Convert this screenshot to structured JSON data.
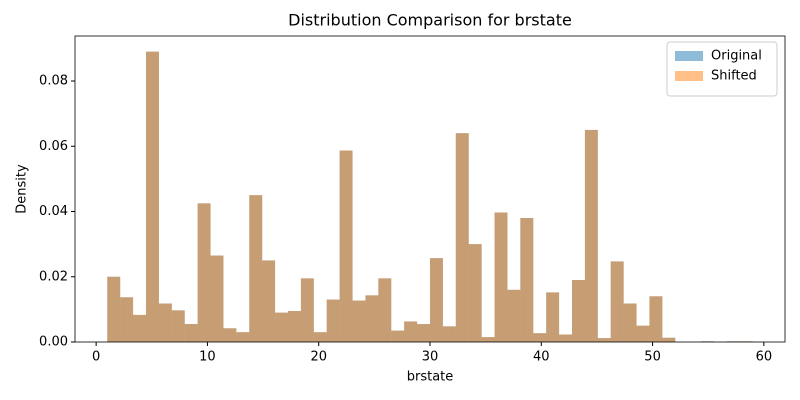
{
  "chart_data": {
    "type": "histogram",
    "title": "Distribution Comparison for brstate",
    "xlabel": "brstate",
    "ylabel": "Density",
    "bins": [
      1,
      2.16,
      3.32,
      4.48,
      5.64,
      6.8,
      7.96,
      9.12,
      10.28,
      11.44,
      12.6,
      13.76,
      14.92,
      16.08,
      17.24,
      18.4,
      19.56,
      20.72,
      21.88,
      23.04,
      24.2,
      25.36,
      26.52,
      27.68,
      28.84,
      30,
      31.16,
      32.32,
      33.48,
      34.64,
      35.8,
      36.96,
      38.12,
      39.28,
      40.44,
      41.6,
      42.76,
      43.92,
      45.08,
      46.24,
      47.4,
      48.56,
      49.72,
      50.88,
      52.04,
      53.2,
      54.36,
      55.52,
      56.68,
      57.84,
      59
    ],
    "series": [
      {
        "name": "Original",
        "color": "#1f77b4",
        "values": [
          0.02,
          0.0137,
          0.0083,
          0.089,
          0.0118,
          0.0097,
          0.0055,
          0.0425,
          0.0265,
          0.0042,
          0.003,
          0.045,
          0.025,
          0.009,
          0.0095,
          0.0195,
          0.003,
          0.013,
          0.0587,
          0.0127,
          0.0143,
          0.0195,
          0.0035,
          0.0063,
          0.0055,
          0.0257,
          0.0048,
          0.064,
          0.03,
          0.0015,
          0.0397,
          0.016,
          0.038,
          0.0027,
          0.0152,
          0.0023,
          0.019,
          0.065,
          0.0012,
          0.0247,
          0.0118,
          0.005,
          0.014,
          0.0013,
          0,
          0,
          0.0002,
          0,
          0.0002,
          0.0002
        ]
      },
      {
        "name": "Shifted",
        "color": "#ff7f0e",
        "values": [
          0.02,
          0.0137,
          0.0083,
          0.089,
          0.0118,
          0.0097,
          0.0055,
          0.0425,
          0.0265,
          0.0042,
          0.003,
          0.045,
          0.025,
          0.009,
          0.0095,
          0.0195,
          0.003,
          0.013,
          0.0587,
          0.0127,
          0.0143,
          0.0195,
          0.0035,
          0.0063,
          0.0055,
          0.0257,
          0.0048,
          0.064,
          0.03,
          0.0015,
          0.0397,
          0.016,
          0.038,
          0.0027,
          0.0152,
          0.0023,
          0.019,
          0.065,
          0.0012,
          0.0247,
          0.0118,
          0.005,
          0.014,
          0.0013,
          0,
          0,
          0.0002,
          0,
          0.0002,
          0.0002
        ]
      }
    ],
    "opacity": 0.5,
    "xlim": [
      -1.9,
      61.9
    ],
    "xticks": [
      0,
      10,
      20,
      30,
      40,
      50,
      60
    ],
    "ylim": [
      0,
      0.0938
    ],
    "yticks": [
      0.0,
      0.02,
      0.04,
      0.06,
      0.08
    ],
    "yticklabels": [
      "0.00",
      "0.02",
      "0.04",
      "0.06",
      "0.08"
    ],
    "legend": "upper right"
  }
}
